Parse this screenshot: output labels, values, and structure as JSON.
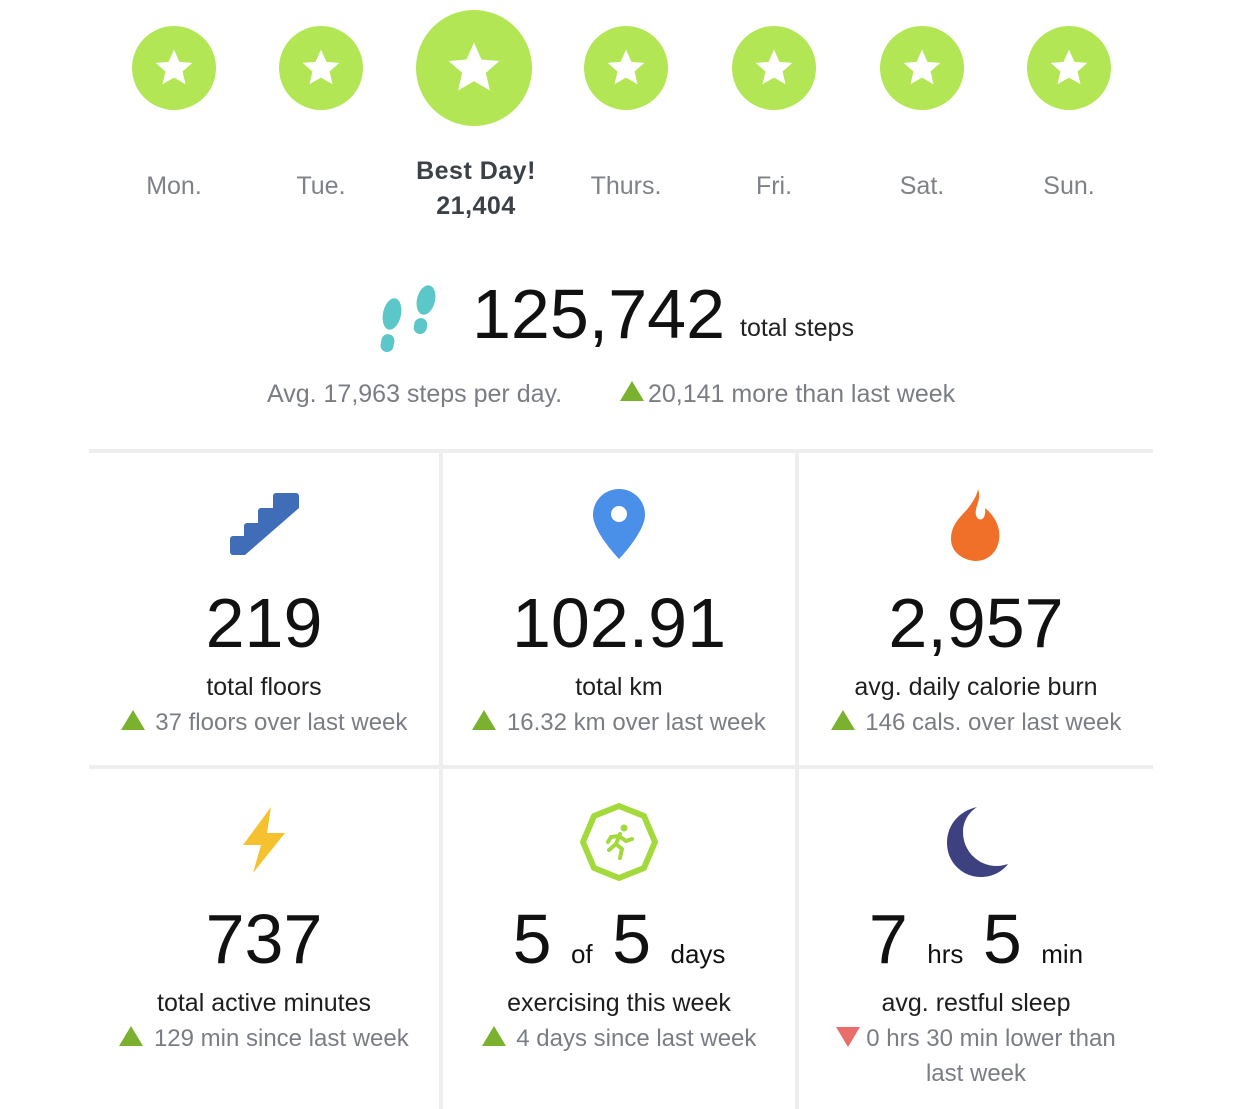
{
  "week": {
    "days": [
      {
        "label": "Mon.",
        "star": true
      },
      {
        "label": "Tue.",
        "star": true
      },
      {
        "label": "Best Day!",
        "value": "21,404",
        "star": true,
        "best": true
      },
      {
        "label": "Thurs.",
        "star": true
      },
      {
        "label": "Fri.",
        "star": true
      },
      {
        "label": "Sat.",
        "star": true
      },
      {
        "label": "Sun.",
        "star": true
      }
    ]
  },
  "steps": {
    "total": "125,742",
    "unit": "total steps",
    "avg": "Avg. 17,963 steps per day.",
    "comparison": "20,141 more than last week",
    "trend": "up"
  },
  "stats": [
    {
      "icon": "stairs-icon",
      "value": "219",
      "label": "total floors",
      "comparison": "37 floors over last week",
      "trend": "up"
    },
    {
      "icon": "location-pin-icon",
      "value": "102.91",
      "label": "total km",
      "comparison": "16.32 km over last week",
      "trend": "up"
    },
    {
      "icon": "flame-icon",
      "value": "2,957",
      "label": "avg. daily calorie burn",
      "comparison": "146 cals. over last week",
      "trend": "up"
    },
    {
      "icon": "lightning-bolt-icon",
      "value": "737",
      "label": "total active minutes",
      "comparison": "129 min since last week",
      "trend": "up"
    },
    {
      "icon": "exercise-runner-icon",
      "value_parts": [
        "5",
        "of",
        "5",
        "days"
      ],
      "label": "exercising this week",
      "comparison": "4 days since last week",
      "trend": "up"
    },
    {
      "icon": "moon-icon",
      "value_parts": [
        "7",
        "hrs",
        "5",
        "min"
      ],
      "label": "avg. restful sleep",
      "comparison": "0 hrs 30 min lower than last week",
      "trend": "down"
    }
  ],
  "colors": {
    "star_green": "#b3e655",
    "trend_up": "#7ab22f",
    "trend_down": "#e86d6b",
    "steps_icon": "#5cc7c9",
    "stairs_icon": "#3f6db8",
    "pin_icon": "#4a90e8",
    "flame_icon": "#f0702a",
    "bolt_icon": "#f5c12e",
    "exercise_icon": "#a3d93a",
    "moon_icon": "#3e417f"
  }
}
